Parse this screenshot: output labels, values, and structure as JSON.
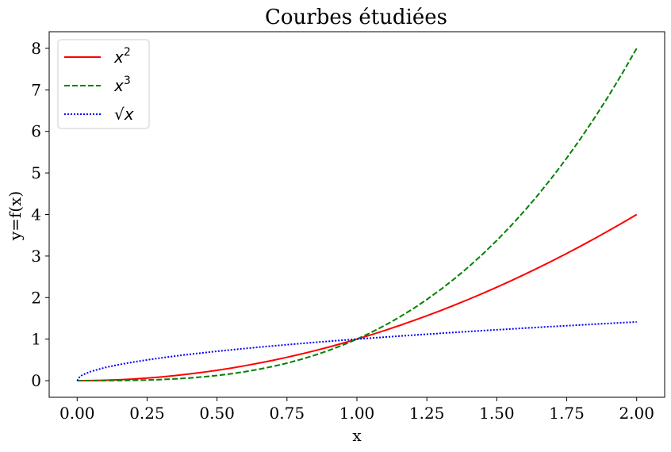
{
  "chart_data": {
    "type": "line",
    "title": "Courbes étudiées",
    "xlabel": "x",
    "ylabel": "y=f(x)",
    "xlim": [
      -0.1,
      2.1
    ],
    "ylim": [
      -0.4,
      8.4
    ],
    "xticks": [
      0.0,
      0.25,
      0.5,
      0.75,
      1.0,
      1.25,
      1.5,
      1.75,
      2.0
    ],
    "xtick_labels": [
      "0.00",
      "0.25",
      "0.50",
      "0.75",
      "1.00",
      "1.25",
      "1.50",
      "1.75",
      "2.00"
    ],
    "yticks": [
      0,
      1,
      2,
      3,
      4,
      5,
      6,
      7,
      8
    ],
    "ytick_labels": [
      "0",
      "1",
      "2",
      "3",
      "4",
      "5",
      "6",
      "7",
      "8"
    ],
    "grid": false,
    "legend_position": "upper-left",
    "x": [
      0.0,
      0.01,
      0.02,
      0.05,
      0.1,
      0.15,
      0.2,
      0.25,
      0.3,
      0.35,
      0.4,
      0.45,
      0.5,
      0.55,
      0.6,
      0.65,
      0.7,
      0.75,
      0.8,
      0.85,
      0.9,
      0.95,
      1.0,
      1.05,
      1.1,
      1.15,
      1.2,
      1.25,
      1.3,
      1.35,
      1.4,
      1.45,
      1.5,
      1.55,
      1.6,
      1.65,
      1.7,
      1.75,
      1.8,
      1.85,
      1.9,
      1.95,
      2.0
    ],
    "series": [
      {
        "name": "x²",
        "legend_base": "x",
        "legend_sup": "2",
        "color": "#ff0000",
        "linestyle": "solid",
        "values": [
          0.0,
          0.0001,
          0.0004,
          0.0025,
          0.01,
          0.0225,
          0.04,
          0.0625,
          0.09,
          0.1225,
          0.16,
          0.2025,
          0.25,
          0.3025,
          0.36,
          0.4225,
          0.49,
          0.5625,
          0.64,
          0.7225,
          0.81,
          0.9025,
          1.0,
          1.1025,
          1.21,
          1.3225,
          1.44,
          1.5625,
          1.69,
          1.8225,
          1.96,
          2.1025,
          2.25,
          2.4025,
          2.56,
          2.7225,
          2.89,
          3.0625,
          3.24,
          3.4225,
          3.61,
          3.8025,
          4.0
        ]
      },
      {
        "name": "x³",
        "legend_base": "x",
        "legend_sup": "3",
        "color": "#008000",
        "linestyle": "dashed",
        "values": [
          0.0,
          1e-06,
          8e-06,
          0.000125,
          0.001,
          0.003375,
          0.008,
          0.015625,
          0.027,
          0.042875,
          0.064,
          0.091125,
          0.125,
          0.166375,
          0.216,
          0.274625,
          0.343,
          0.421875,
          0.512,
          0.614125,
          0.729,
          0.857375,
          1.0,
          1.157625,
          1.331,
          1.520875,
          1.728,
          1.953125,
          2.197,
          2.460375,
          2.744,
          3.048625,
          3.375,
          3.723875,
          4.096,
          4.492125,
          4.913,
          5.359375,
          5.832,
          6.331625,
          6.859,
          7.414875,
          8.0
        ]
      },
      {
        "name": "√x",
        "legend_base": "√x",
        "legend_sup": "",
        "color": "#0000ff",
        "linestyle": "dotted",
        "values": [
          0.0,
          0.1,
          0.1414,
          0.2236,
          0.3162,
          0.3873,
          0.4472,
          0.5,
          0.5477,
          0.5916,
          0.6325,
          0.6708,
          0.7071,
          0.7416,
          0.7746,
          0.8062,
          0.8367,
          0.866,
          0.8944,
          0.922,
          0.9487,
          0.9747,
          1.0,
          1.0247,
          1.0488,
          1.0724,
          1.0954,
          1.118,
          1.1402,
          1.1619,
          1.1832,
          1.2042,
          1.2247,
          1.245,
          1.2649,
          1.2845,
          1.3038,
          1.3229,
          1.3416,
          1.3601,
          1.3784,
          1.3964,
          1.4142
        ]
      }
    ]
  }
}
